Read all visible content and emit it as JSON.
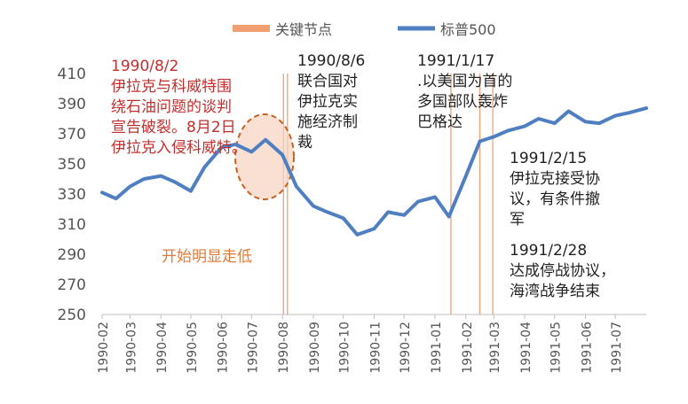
{
  "legend": {
    "key_nodes": "关键节点",
    "sp500": "标普500"
  },
  "colors": {
    "line": "#4f7fc0",
    "event": "#f0a070",
    "ellipse_fill": "#f6d3c0",
    "ellipse_stroke": "#c8601e",
    "axis_text": "#555555",
    "red_text": "#c0302e",
    "orange_text": "#e07b39"
  },
  "annotations": {
    "a1": "1990/8/2\n伊拉克与科威特围\n绕石油问题的谈判\n宣告破裂。8月2日\n伊拉克入侵科威特。",
    "a2": "1990/8/6\n联合国对\n伊拉克实\n施经济制\n裁",
    "a3": "1991/1/17\n.以美国为首的\n多国部队轰炸\n巴格达",
    "a4": "1991/2/15\n伊拉克接受协\n议，有条件撤\n军",
    "a5": "1991/2/28\n达成停战协议，\n海湾战争结束",
    "a6": "开始明显走低"
  },
  "chart_data": {
    "type": "line",
    "title": "",
    "xlabel": "",
    "ylabel": "",
    "ylim": [
      250,
      410
    ],
    "yticks": [
      250,
      270,
      290,
      310,
      330,
      350,
      370,
      390,
      410
    ],
    "xticks": [
      "1990-02",
      "1990-03",
      "1990-04",
      "1990-05",
      "1990-06",
      "1990-07",
      "1990-08",
      "1990-09",
      "1990-10",
      "1990-11",
      "1990-12",
      "1991-01",
      "1991-02",
      "1991-03",
      "1991-04",
      "1991-05",
      "1991-06",
      "1991-07"
    ],
    "grid": false,
    "legend_position": "top",
    "series": [
      {
        "name": "标普500",
        "x": [
          "1990-02-01",
          "1990-02-15",
          "1990-03-01",
          "1990-03-15",
          "1990-04-01",
          "1990-04-15",
          "1990-05-01",
          "1990-05-15",
          "1990-06-01",
          "1990-06-15",
          "1990-07-01",
          "1990-07-15",
          "1990-08-01",
          "1990-08-15",
          "1990-09-01",
          "1990-09-15",
          "1990-10-01",
          "1990-10-15",
          "1990-11-01",
          "1990-11-15",
          "1990-12-01",
          "1990-12-15",
          "1991-01-01",
          "1991-01-15",
          "1991-02-01",
          "1991-02-15",
          "1991-03-01",
          "1991-03-15",
          "1991-04-01",
          "1991-04-15",
          "1991-05-01",
          "1991-05-15",
          "1991-06-01",
          "1991-06-15",
          "1991-07-01",
          "1991-07-15",
          "1991-08-01"
        ],
        "values": [
          331,
          327,
          335,
          340,
          342,
          338,
          332,
          348,
          361,
          363,
          358,
          366,
          356,
          335,
          322,
          318,
          314,
          303,
          307,
          318,
          316,
          325,
          328,
          315,
          342,
          365,
          368,
          372,
          375,
          380,
          377,
          385,
          378,
          377,
          382,
          384,
          387
        ]
      }
    ],
    "events": [
      {
        "date": "1990-08-02",
        "label": "1990/8/2"
      },
      {
        "date": "1990-08-06",
        "label": "1990/8/6"
      },
      {
        "date": "1991-01-17",
        "label": "1991/1/17"
      },
      {
        "date": "1991-02-15",
        "label": "1991/2/15"
      },
      {
        "date": "1991-02-28",
        "label": "1991/2/28"
      }
    ]
  }
}
